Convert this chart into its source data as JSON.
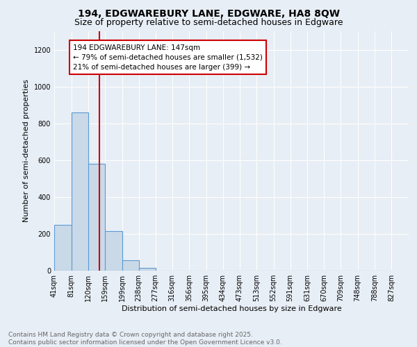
{
  "title": "194, EDGWAREBURY LANE, EDGWARE, HA8 8QW",
  "subtitle": "Size of property relative to semi-detached houses in Edgware",
  "xlabel": "Distribution of semi-detached houses by size in Edgware",
  "ylabel": "Number of semi-detached properties",
  "bin_labels": [
    "41sqm",
    "81sqm",
    "120sqm",
    "159sqm",
    "199sqm",
    "238sqm",
    "277sqm",
    "316sqm",
    "356sqm",
    "395sqm",
    "434sqm",
    "473sqm",
    "513sqm",
    "552sqm",
    "591sqm",
    "631sqm",
    "670sqm",
    "709sqm",
    "748sqm",
    "788sqm",
    "827sqm"
  ],
  "bin_edges": [
    41,
    81,
    120,
    159,
    199,
    238,
    277,
    316,
    356,
    395,
    434,
    473,
    513,
    552,
    591,
    631,
    670,
    709,
    748,
    788,
    827
  ],
  "bar_values": [
    250,
    860,
    580,
    215,
    55,
    15,
    0,
    0,
    0,
    0,
    0,
    0,
    0,
    0,
    0,
    0,
    0,
    0,
    0,
    0
  ],
  "bar_color": "#c9d9e8",
  "bar_edge_color": "#5b9bd5",
  "vline_x": 147,
  "vline_color": "#cc0000",
  "annotation_line1": "194 EDGWAREBURY LANE: 147sqm",
  "annotation_line2": "← 79% of semi-detached houses are smaller (1,532)",
  "annotation_line3": "21% of semi-detached houses are larger (399) →",
  "annotation_box_color": "#cc0000",
  "ylim": [
    0,
    1300
  ],
  "yticks": [
    0,
    200,
    400,
    600,
    800,
    1000,
    1200
  ],
  "background_color": "#e8eef5",
  "plot_bg_color": "#e8eef5",
  "footer_line1": "Contains HM Land Registry data © Crown copyright and database right 2025.",
  "footer_line2": "Contains public sector information licensed under the Open Government Licence v3.0.",
  "title_fontsize": 10,
  "subtitle_fontsize": 9,
  "axis_label_fontsize": 8,
  "tick_fontsize": 7,
  "annotation_fontsize": 7.5,
  "footer_fontsize": 6.5
}
